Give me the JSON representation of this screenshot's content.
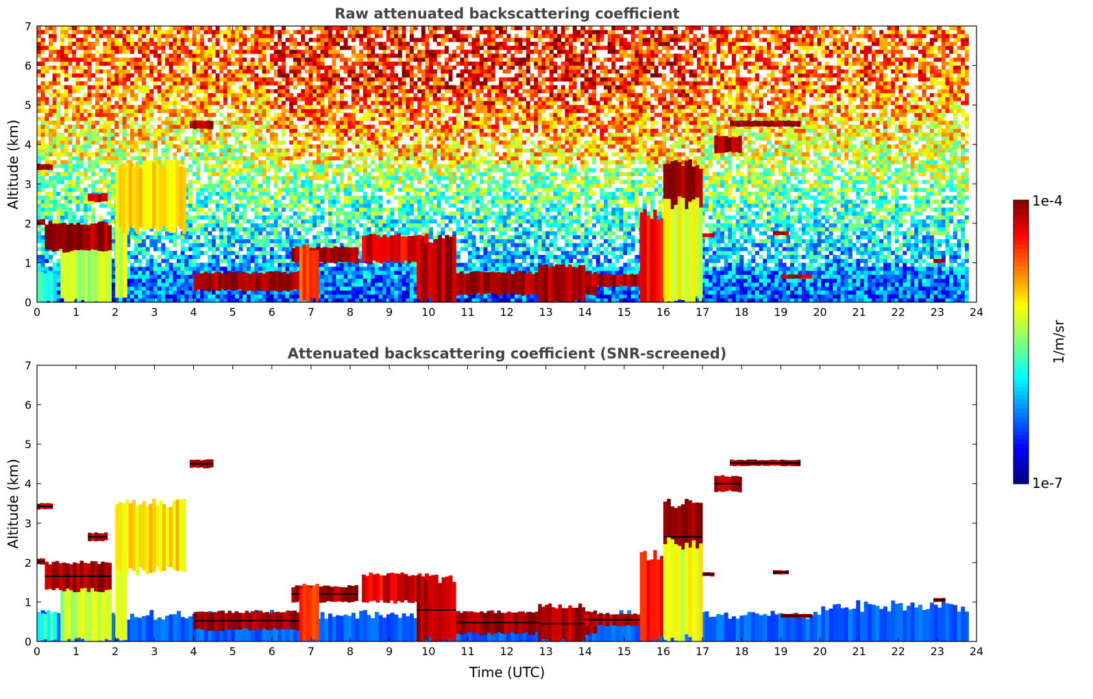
{
  "chart_data": [
    {
      "type": "heatmap",
      "title": "Raw attenuated backscattering coefficient",
      "xlabel": "",
      "ylabel": "Altitude (km)",
      "xlim": [
        0,
        24
      ],
      "ylim": [
        0,
        7
      ],
      "xticks": [
        "0",
        "1",
        "2",
        "3",
        "4",
        "5",
        "6",
        "7",
        "8",
        "9",
        "10",
        "11",
        "12",
        "13",
        "14",
        "15",
        "16",
        "17",
        "18",
        "19",
        "20",
        "21",
        "22",
        "23",
        "24"
      ],
      "yticks": [
        "0",
        "1",
        "2",
        "3",
        "4",
        "5",
        "6",
        "7"
      ],
      "data_end_time": 23.8,
      "background": "noisy (signal increases with altitude, above ~1 km)",
      "layers": [
        {
          "x": [
            0.0,
            0.5
          ],
          "y": [
            0.0,
            0.75
          ],
          "level": 0.4
        },
        {
          "x": [
            0.6,
            1.9
          ],
          "y": [
            0.0,
            1.9
          ],
          "level": 0.55
        },
        {
          "x": [
            2.0,
            2.3
          ],
          "y": [
            0.0,
            3.0
          ],
          "level": 0.6
        },
        {
          "x": [
            2.0,
            3.8
          ],
          "y": [
            1.8,
            3.5
          ],
          "level": 0.65
        },
        {
          "x": [
            0.0,
            0.4
          ],
          "y": [
            3.35,
            3.5
          ],
          "level": 0.98
        },
        {
          "x": [
            0.0,
            0.2
          ],
          "y": [
            1.95,
            2.1
          ],
          "level": 0.98
        },
        {
          "x": [
            1.3,
            1.8
          ],
          "y": [
            2.55,
            2.75
          ],
          "level": 0.95
        },
        {
          "x": [
            0.2,
            1.9
          ],
          "y": [
            1.3,
            2.0
          ],
          "level": 0.97
        },
        {
          "x": [
            3.9,
            4.5
          ],
          "y": [
            4.4,
            4.6
          ],
          "level": 0.98
        },
        {
          "x": [
            4.0,
            6.8
          ],
          "y": [
            0.3,
            0.75
          ],
          "level": 0.97
        },
        {
          "x": [
            6.5,
            8.2
          ],
          "y": [
            1.0,
            1.4
          ],
          "level": 0.97
        },
        {
          "x": [
            6.7,
            7.2
          ],
          "y": [
            0.0,
            1.4
          ],
          "level": 0.8
        },
        {
          "x": [
            8.3,
            10.0
          ],
          "y": [
            1.0,
            1.7
          ],
          "level": 0.9
        },
        {
          "x": [
            9.7,
            10.7
          ],
          "y": [
            0.0,
            1.6
          ],
          "level": 0.95
        },
        {
          "x": [
            10.7,
            14.3
          ],
          "y": [
            0.2,
            0.75
          ],
          "level": 0.97
        },
        {
          "x": [
            12.8,
            14.0
          ],
          "y": [
            0.0,
            0.9
          ],
          "level": 0.96
        },
        {
          "x": [
            14.0,
            15.5
          ],
          "y": [
            0.4,
            0.7
          ],
          "level": 0.95
        },
        {
          "x": [
            15.4,
            16.0
          ],
          "y": [
            0.0,
            2.2
          ],
          "level": 0.88
        },
        {
          "x": [
            16.0,
            17.0
          ],
          "y": [
            1.8,
            3.5
          ],
          "level": 0.97
        },
        {
          "x": [
            16.0,
            17.0
          ],
          "y": [
            0.0,
            2.5
          ],
          "level": 0.6
        },
        {
          "x": [
            17.3,
            18.0
          ],
          "y": [
            3.8,
            4.2
          ],
          "level": 0.97
        },
        {
          "x": [
            17.7,
            19.5
          ],
          "y": [
            4.45,
            4.6
          ],
          "level": 0.99
        },
        {
          "x": [
            17.0,
            17.3
          ],
          "y": [
            1.65,
            1.75
          ],
          "level": 0.95
        },
        {
          "x": [
            18.8,
            19.2
          ],
          "y": [
            1.7,
            1.8
          ],
          "level": 0.95
        },
        {
          "x": [
            19.0,
            19.8
          ],
          "y": [
            0.6,
            0.7
          ],
          "level": 0.95
        },
        {
          "x": [
            22.9,
            23.2
          ],
          "y": [
            1.0,
            1.1
          ],
          "level": 0.95
        }
      ]
    },
    {
      "type": "heatmap",
      "title": "Attenuated backscattering coefficient (SNR-screened)",
      "xlabel": "Time (UTC)",
      "ylabel": "Altitude (km)",
      "xlim": [
        0,
        24
      ],
      "ylim": [
        0,
        7
      ],
      "xticks": [
        "0",
        "1",
        "2",
        "3",
        "4",
        "5",
        "6",
        "7",
        "8",
        "9",
        "10",
        "11",
        "12",
        "13",
        "14",
        "15",
        "16",
        "17",
        "18",
        "19",
        "20",
        "21",
        "22",
        "23",
        "24"
      ],
      "yticks": [
        "0",
        "1",
        "2",
        "3",
        "4",
        "5",
        "6",
        "7"
      ],
      "data_end_time": 23.8,
      "background": "white where screened out (low SNR)",
      "layers": [
        {
          "x": [
            0.0,
            0.5
          ],
          "y": [
            0.0,
            0.75
          ],
          "level": 0.4
        },
        {
          "x": [
            0.6,
            1.9
          ],
          "y": [
            0.0,
            1.9
          ],
          "level": 0.55
        },
        {
          "x": [
            2.0,
            2.3
          ],
          "y": [
            0.0,
            3.0
          ],
          "level": 0.6
        },
        {
          "x": [
            2.0,
            3.8
          ],
          "y": [
            1.8,
            3.5
          ],
          "level": 0.65
        },
        {
          "x": [
            0.0,
            0.4
          ],
          "y": [
            3.35,
            3.5
          ],
          "level": 0.98
        },
        {
          "x": [
            0.0,
            0.2
          ],
          "y": [
            1.95,
            2.1
          ],
          "level": 0.98
        },
        {
          "x": [
            1.3,
            1.8
          ],
          "y": [
            2.55,
            2.75
          ],
          "level": 0.95
        },
        {
          "x": [
            0.2,
            1.9
          ],
          "y": [
            1.3,
            2.0
          ],
          "level": 0.97
        },
        {
          "x": [
            3.9,
            4.5
          ],
          "y": [
            4.4,
            4.6
          ],
          "level": 0.98
        },
        {
          "x": [
            4.0,
            6.8
          ],
          "y": [
            0.3,
            0.75
          ],
          "level": 0.97
        },
        {
          "x": [
            6.5,
            8.2
          ],
          "y": [
            1.0,
            1.4
          ],
          "level": 0.97
        },
        {
          "x": [
            6.7,
            7.2
          ],
          "y": [
            0.0,
            1.4
          ],
          "level": 0.8
        },
        {
          "x": [
            8.3,
            10.0
          ],
          "y": [
            1.0,
            1.7
          ],
          "level": 0.9
        },
        {
          "x": [
            9.7,
            10.7
          ],
          "y": [
            0.0,
            1.6
          ],
          "level": 0.95
        },
        {
          "x": [
            10.7,
            14.3
          ],
          "y": [
            0.2,
            0.75
          ],
          "level": 0.97
        },
        {
          "x": [
            12.8,
            14.0
          ],
          "y": [
            0.0,
            0.9
          ],
          "level": 0.96
        },
        {
          "x": [
            14.0,
            15.5
          ],
          "y": [
            0.4,
            0.7
          ],
          "level": 0.95
        },
        {
          "x": [
            15.4,
            16.0
          ],
          "y": [
            0.0,
            2.2
          ],
          "level": 0.88
        },
        {
          "x": [
            16.0,
            17.0
          ],
          "y": [
            1.8,
            3.5
          ],
          "level": 0.97
        },
        {
          "x": [
            16.0,
            17.0
          ],
          "y": [
            0.0,
            2.5
          ],
          "level": 0.6
        },
        {
          "x": [
            17.3,
            18.0
          ],
          "y": [
            3.8,
            4.2
          ],
          "level": 0.97
        },
        {
          "x": [
            17.7,
            19.5
          ],
          "y": [
            4.45,
            4.6
          ],
          "level": 0.99
        },
        {
          "x": [
            17.0,
            17.3
          ],
          "y": [
            1.65,
            1.75
          ],
          "level": 0.95
        },
        {
          "x": [
            18.8,
            19.2
          ],
          "y": [
            1.7,
            1.8
          ],
          "level": 0.95
        },
        {
          "x": [
            19.0,
            19.8
          ],
          "y": [
            0.6,
            0.7
          ],
          "level": 0.95
        },
        {
          "x": [
            22.9,
            23.2
          ],
          "y": [
            1.0,
            1.1
          ],
          "level": 0.95
        }
      ]
    }
  ],
  "colorbar": {
    "label": "1/m/sr",
    "max_label": "1e-4",
    "min_label": "1e-7",
    "colormap": "jet",
    "scale": "log",
    "range": [
      1e-07,
      0.0001
    ]
  }
}
